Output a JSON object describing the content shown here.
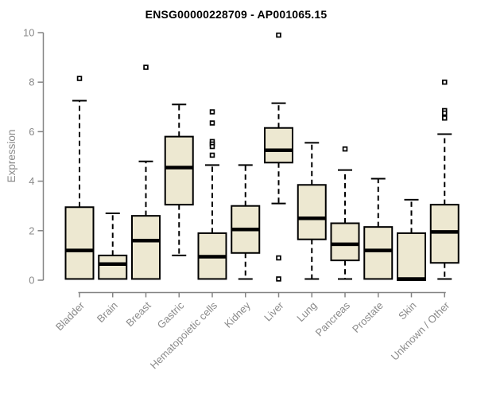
{
  "chart_data": {
    "type": "boxplot",
    "title": "ENSG00000228709 - AP001065.15",
    "xlabel": "",
    "ylabel": "Expression",
    "ylim": [
      0,
      10
    ],
    "yticks": [
      0,
      2,
      4,
      6,
      8,
      10
    ],
    "grid": false,
    "legend": null,
    "categories": [
      "Bladder",
      "Brain",
      "Breast",
      "Gastric",
      "Hematopoietic cells",
      "Kidney",
      "Liver",
      "Lung",
      "Pancreas",
      "Prostate",
      "Skin",
      "Unknown / Other"
    ],
    "series": [
      {
        "name": "Bladder",
        "whisker_low": 0.05,
        "q1": 0.05,
        "median": 1.2,
        "q3": 2.95,
        "whisker_high": 7.25,
        "outliers": [
          8.15
        ]
      },
      {
        "name": "Brain",
        "whisker_low": 0.05,
        "q1": 0.05,
        "median": 0.65,
        "q3": 1.0,
        "whisker_high": 2.7,
        "outliers": []
      },
      {
        "name": "Breast",
        "whisker_low": 0.05,
        "q1": 0.05,
        "median": 1.6,
        "q3": 2.6,
        "whisker_high": 4.8,
        "outliers": [
          8.6
        ]
      },
      {
        "name": "Gastric",
        "whisker_low": 1.0,
        "q1": 3.05,
        "median": 4.55,
        "q3": 5.8,
        "whisker_high": 7.1,
        "outliers": []
      },
      {
        "name": "Hematopoietic cells",
        "whisker_low": 0.05,
        "q1": 0.05,
        "median": 0.95,
        "q3": 1.9,
        "whisker_high": 4.65,
        "outliers": [
          6.8,
          6.35,
          5.6,
          5.5,
          5.4,
          5.05
        ]
      },
      {
        "name": "Kidney",
        "whisker_low": 0.05,
        "q1": 1.1,
        "median": 2.05,
        "q3": 3.0,
        "whisker_high": 4.65,
        "outliers": []
      },
      {
        "name": "Liver",
        "whisker_low": 3.1,
        "q1": 4.75,
        "median": 5.25,
        "q3": 6.15,
        "whisker_high": 7.15,
        "outliers": [
          9.9,
          0.9,
          0.05
        ]
      },
      {
        "name": "Lung",
        "whisker_low": 0.05,
        "q1": 1.65,
        "median": 2.5,
        "q3": 3.85,
        "whisker_high": 5.55,
        "outliers": []
      },
      {
        "name": "Pancreas",
        "whisker_low": 0.05,
        "q1": 0.8,
        "median": 1.45,
        "q3": 2.3,
        "whisker_high": 4.45,
        "outliers": [
          5.3
        ]
      },
      {
        "name": "Prostate",
        "whisker_low": 0.05,
        "q1": 0.05,
        "median": 1.2,
        "q3": 2.15,
        "whisker_high": 4.1,
        "outliers": []
      },
      {
        "name": "Skin",
        "whisker_low": 0.0,
        "q1": 0.0,
        "median": 0.05,
        "q3": 1.9,
        "whisker_high": 3.25,
        "outliers": []
      },
      {
        "name": "Unknown / Other",
        "whisker_low": 0.05,
        "q1": 0.7,
        "median": 1.95,
        "q3": 3.05,
        "whisker_high": 5.9,
        "outliers": [
          8.0,
          6.85,
          6.75,
          6.55
        ]
      }
    ],
    "colors": {
      "box_fill": "#EDE8D1",
      "box_border": "#000000",
      "median": "#000000",
      "whisker": "#000000",
      "outlier_fill": "#ffffff",
      "outlier_border": "#000000",
      "axis": "#848484",
      "tick_label": "#8a8a8a",
      "title": "#000000",
      "background": "#ffffff"
    }
  }
}
